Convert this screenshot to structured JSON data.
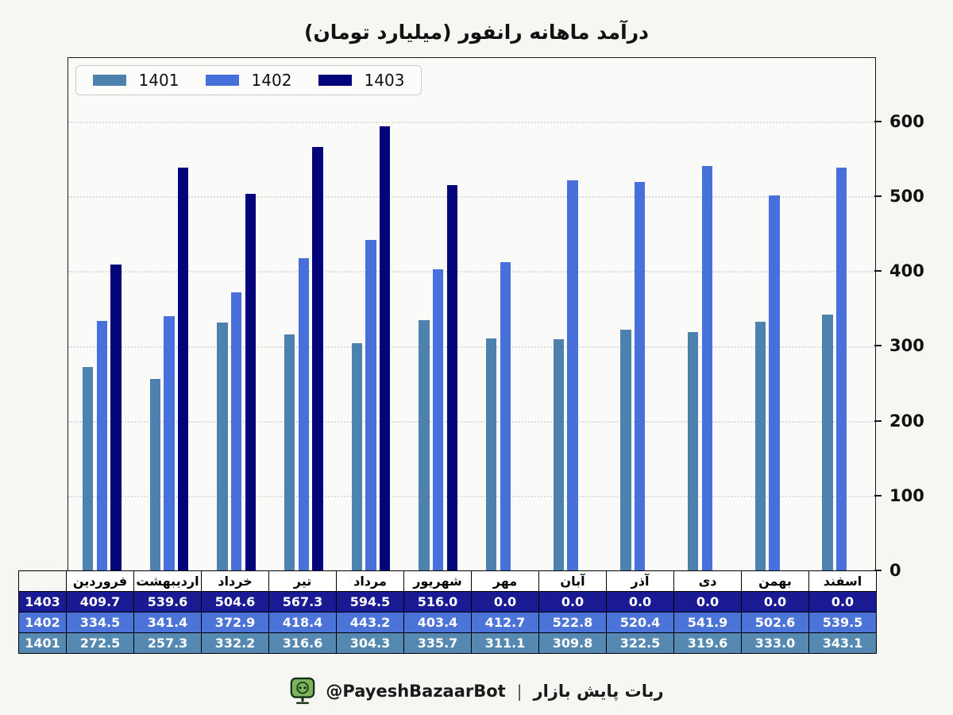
{
  "title": "درآمد ماهانه رانفور (میلیارد تومان)",
  "chart_data": {
    "type": "bar",
    "title": "درآمد ماهانه رانفور (میلیارد تومان)",
    "categories": [
      "فروردین",
      "اردیبهشت",
      "خرداد",
      "تیر",
      "مرداد",
      "شهریور",
      "مهر",
      "آبان",
      "آذر",
      "دی",
      "بهمن",
      "اسفند"
    ],
    "series": [
      {
        "name": "1401",
        "color": "#4C82AD",
        "table_color": "#5589B1",
        "values": [
          272.5,
          257.3,
          332.2,
          316.6,
          304.3,
          335.7,
          311.1,
          309.8,
          322.5,
          319.6,
          333.0,
          343.1
        ]
      },
      {
        "name": "1402",
        "color": "#4870DB",
        "table_color": "#4B73D8",
        "values": [
          334.5,
          341.4,
          372.9,
          418.4,
          443.2,
          403.4,
          412.7,
          522.8,
          520.4,
          541.9,
          502.6,
          539.5
        ]
      },
      {
        "name": "1403",
        "color": "#03037A",
        "table_color": "#1A1A92",
        "values": [
          409.7,
          539.6,
          504.6,
          567.3,
          594.5,
          516.0,
          0.0,
          0.0,
          0.0,
          0.0,
          0.0,
          0.0
        ]
      }
    ],
    "xlabel": "",
    "ylabel": "",
    "ylim": [
      0,
      686
    ],
    "yticks": [
      0,
      100,
      200,
      300,
      400,
      500,
      600
    ],
    "grid": true,
    "grid_style": "dotted",
    "legend_position": "top-left",
    "y_axis_side": "right"
  },
  "table": {
    "row_order": [
      "1403",
      "1402",
      "1401"
    ]
  },
  "footer": {
    "handle": "@PayeshBazaarBot",
    "separator": "|",
    "text": "ربات پایش بازار",
    "icon": "bot-monitor-icon",
    "icon_color": "#7AB55C"
  }
}
